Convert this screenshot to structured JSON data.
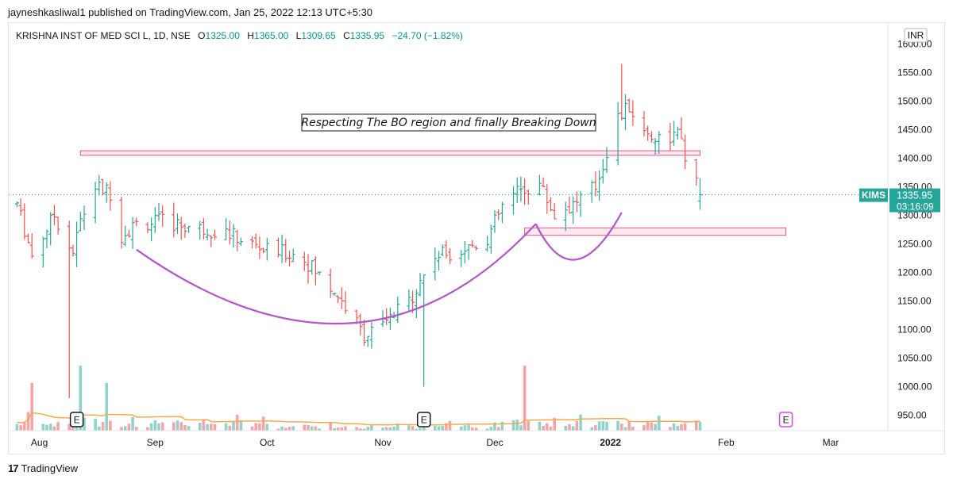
{
  "header": {
    "published": "jayneshkasliwal1 published on TradingView.com, Jan 25, 2022 12:13 UTC+5:30"
  },
  "legend": {
    "symbol": "KRISHNA INST OF MED SCI L, 1D, NSE",
    "o_label": "O",
    "o_value": "1325.00",
    "h_label": "H",
    "h_value": "1365.00",
    "l_label": "L",
    "l_value": "1309.65",
    "c_label": "C",
    "c_value": "1335.95",
    "change": "−24.70 (−1.82%)"
  },
  "price_axis": {
    "currency": "INR",
    "ticks": [
      "1600.00",
      "1550.00",
      "1500.00",
      "1450.00",
      "1400.00",
      "1350.00",
      "1300.00",
      "1250.00",
      "1200.00",
      "1150.00",
      "1100.00",
      "1050.00",
      "1000.00",
      "950.00"
    ]
  },
  "time_axis": {
    "labels": [
      "Aug",
      "Sep",
      "Oct",
      "Nov",
      "Dec",
      "2022",
      "Feb",
      "Mar"
    ]
  },
  "last_price": {
    "ticker": "KIMS",
    "price": "1335.95",
    "countdown": "03:16:09"
  },
  "annotation": {
    "text": "Respecting The BO region and finally Breaking Down"
  },
  "earnings_marker": "E",
  "footer": {
    "logo": "17",
    "brand": "TradingView"
  },
  "colors": {
    "up": "#26a69a",
    "down": "#ef5350",
    "volume_up": "#8fd3cc",
    "volume_down": "#f4a6a6",
    "volume_ma": "#f7a94a",
    "curve": "#b455c9",
    "zone_fill": "#fbd3e0",
    "zone_border": "#e05a8c",
    "earnings_future": "#e040fb"
  },
  "chart_data": {
    "type": "ohlc",
    "title": "KRISHNA INST OF MED SCI L, 1D, NSE",
    "ylim": [
      925,
      1625
    ],
    "price_anchors": [
      [
        "2021-07-26",
        1320
      ],
      [
        "2021-07-30",
        1230
      ],
      [
        "2021-08-05",
        1300
      ],
      [
        "2021-08-10",
        1235
      ],
      [
        "2021-08-12",
        1290
      ],
      [
        "2021-08-16",
        1350
      ],
      [
        "2021-08-20",
        1340
      ],
      [
        "2021-08-23",
        1265
      ],
      [
        "2021-08-27",
        1285
      ],
      [
        "2021-09-03",
        1290
      ],
      [
        "2021-09-10",
        1280
      ],
      [
        "2021-09-20",
        1270
      ],
      [
        "2021-09-30",
        1240
      ],
      [
        "2021-10-10",
        1230
      ],
      [
        "2021-10-20",
        1160
      ],
      [
        "2021-10-27",
        1090
      ],
      [
        "2021-11-01",
        1105
      ],
      [
        "2021-11-08",
        1150
      ],
      [
        "2021-11-15",
        1230
      ],
      [
        "2021-11-22",
        1240
      ],
      [
        "2021-11-29",
        1260
      ],
      [
        "2021-12-03",
        1315
      ],
      [
        "2021-12-07",
        1340
      ],
      [
        "2021-12-13",
        1355
      ],
      [
        "2021-12-17",
        1300
      ],
      [
        "2021-12-22",
        1320
      ],
      [
        "2021-12-28",
        1350
      ],
      [
        "2022-01-03",
        1470
      ],
      [
        "2022-01-06",
        1490
      ],
      [
        "2022-01-10",
        1445
      ],
      [
        "2022-01-14",
        1435
      ],
      [
        "2022-01-19",
        1440
      ],
      [
        "2022-01-21",
        1405
      ],
      [
        "2022-01-25",
        1335.95
      ]
    ],
    "last_bar": {
      "date": "2022-01-25",
      "open": 1325.0,
      "high": 1365.0,
      "low": 1309.65,
      "close": 1335.95,
      "change": -24.7,
      "change_pct": -1.82
    },
    "notable_highs_lows": {
      "high_2022-01-04": 1565,
      "low_2021-11-12": 1000,
      "low_2021-08-09": 980
    },
    "zones": [
      {
        "name": "breakout-zone",
        "from": "2021-08-12",
        "to": "2022-01-25",
        "low": 1405,
        "high": 1413
      },
      {
        "name": "handle-support-zone",
        "from": "2021-12-09",
        "to": "2022-02-17",
        "low": 1265,
        "high": 1278
      }
    ],
    "volume_spikes": [
      [
        "2021-07-30",
        "high"
      ],
      [
        "2021-08-12",
        "very high"
      ],
      [
        "2021-08-19",
        "high"
      ],
      [
        "2021-12-09",
        "very high"
      ]
    ],
    "x_axis": [
      "Aug",
      "Sep",
      "Oct",
      "Nov",
      "Dec",
      "2022",
      "Feb",
      "Mar"
    ],
    "y_axis": {
      "min": 950,
      "max": 1600,
      "step": 50
    }
  }
}
